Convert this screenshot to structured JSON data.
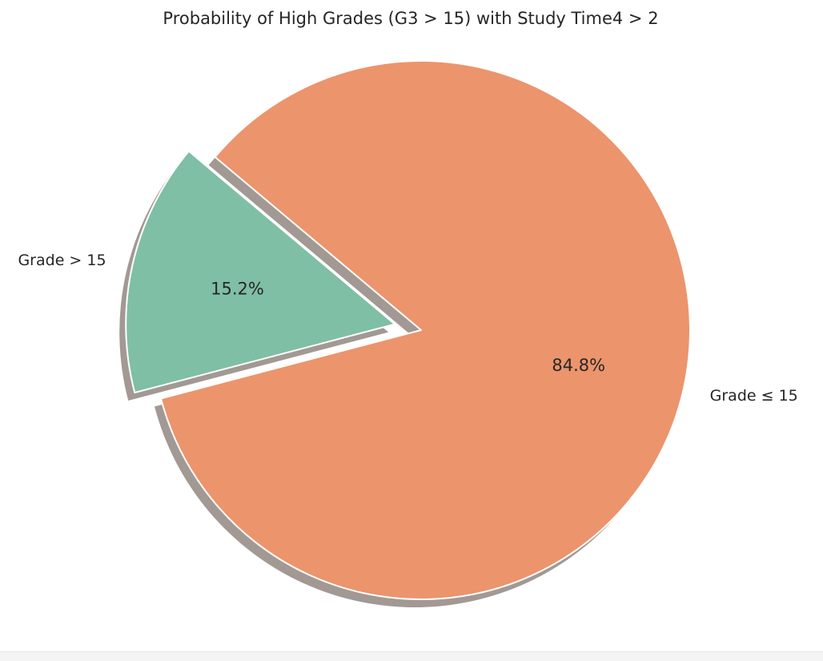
{
  "chart_data": {
    "type": "pie",
    "title": "Probability of High Grades (G3 > 15) with Study Time4 > 2",
    "start_angle_deg": 140,
    "shadow": true,
    "slices": [
      {
        "label": "Grade > 15",
        "value": 15.2,
        "pct_label": "15.2%",
        "color": "#7fbfa6",
        "exploded": true
      },
      {
        "label": "Grade ≤ 15",
        "value": 84.8,
        "pct_label": "84.8%",
        "color": "#ec946c",
        "exploded": false
      }
    ]
  }
}
